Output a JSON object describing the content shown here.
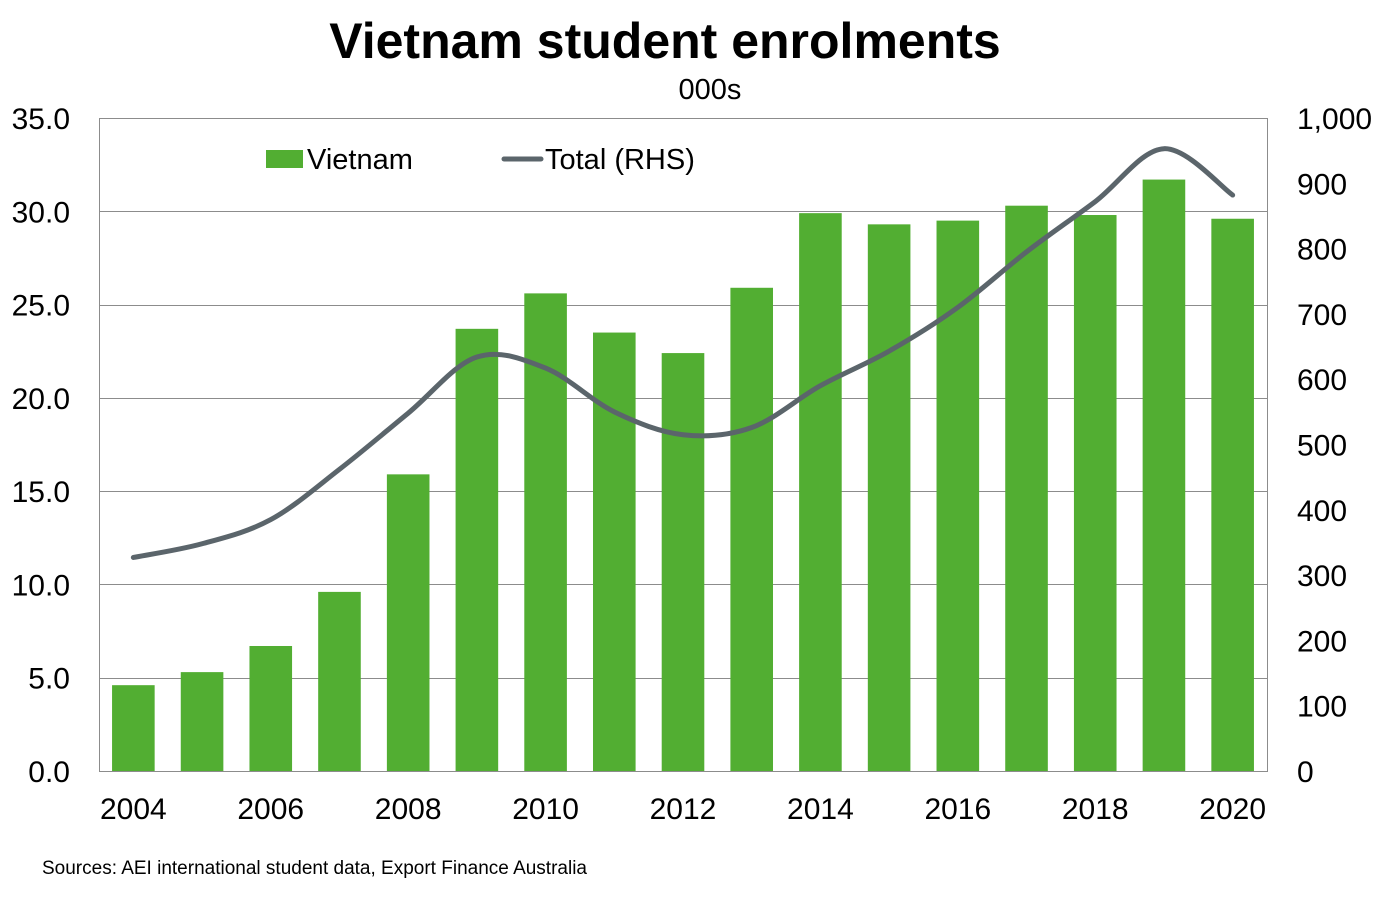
{
  "source": "Sources: AEI international student data, Export Finance Australia",
  "colors": {
    "bar": "#52ae32",
    "line": "#5b656b",
    "grid": "#8c8c8c"
  },
  "chart_data": {
    "type": "bar",
    "title": "Vietnam student enrolments",
    "subtitle": "000s",
    "x": [
      2004,
      2005,
      2006,
      2007,
      2008,
      2009,
      2010,
      2011,
      2012,
      2013,
      2014,
      2015,
      2016,
      2017,
      2018,
      2019,
      2020
    ],
    "x_tick_labels": [
      "2004",
      "2006",
      "2008",
      "2010",
      "2012",
      "2014",
      "2016",
      "2018",
      "2020"
    ],
    "y_left": {
      "range": [
        0,
        35
      ],
      "ticks": [
        "0.0",
        "5.0",
        "10.0",
        "15.0",
        "20.0",
        "25.0",
        "30.0",
        "35.0"
      ]
    },
    "y_right": {
      "range": [
        0,
        1000
      ],
      "ticks": [
        "0",
        "100",
        "200",
        "300",
        "400",
        "500",
        "600",
        "700",
        "800",
        "900",
        "1,000"
      ]
    },
    "grid": true,
    "legend_position": "top-left",
    "series": [
      {
        "name": "Vietnam",
        "type": "bar",
        "axis": "left",
        "values": [
          4.6,
          5.3,
          6.7,
          9.6,
          15.9,
          23.7,
          25.6,
          23.5,
          22.4,
          25.9,
          29.9,
          29.3,
          29.5,
          30.3,
          29.8,
          31.7,
          29.6
        ]
      },
      {
        "name": "Total (RHS)",
        "type": "line",
        "axis": "right",
        "values": [
          327,
          348,
          385,
          462,
          548,
          634,
          617,
          550,
          515,
          526,
          590,
          643,
          710,
          795,
          872,
          953,
          882
        ]
      }
    ]
  }
}
